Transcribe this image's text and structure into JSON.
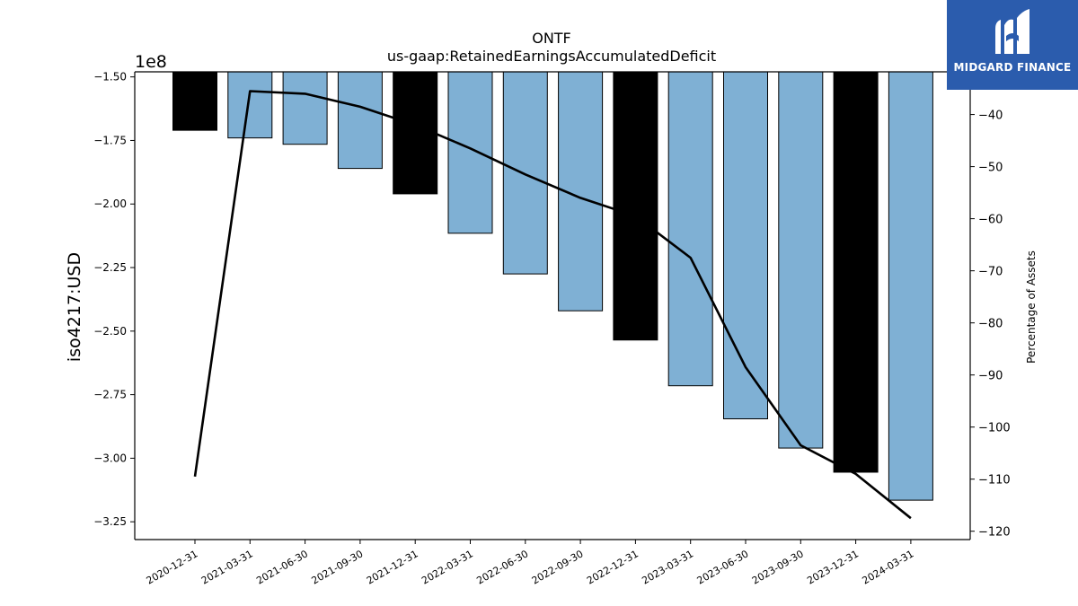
{
  "chart_data": {
    "type": "bar",
    "title": "ONTF",
    "subtitle": "us-gaap:RetainedEarningsAccumulatedDeficit",
    "ylabel": "iso4217:USD",
    "y2label": "Percentage of Assets",
    "y_offset_label": "1e8",
    "categories": [
      "2020-12-31",
      "2021-03-31",
      "2021-06-30",
      "2021-09-30",
      "2021-12-31",
      "2022-03-31",
      "2022-06-30",
      "2022-09-30",
      "2022-12-31",
      "2023-03-31",
      "2023-06-30",
      "2023-09-30",
      "2023-12-31",
      "2024-03-31"
    ],
    "values": [
      -171000000,
      -174000000,
      -176500000,
      -186000000,
      -196000000,
      -211500000,
      -227500000,
      -242000000,
      -253500000,
      -271500000,
      -284500000,
      -296000000,
      -305500000,
      -316500000
    ],
    "bar_colors": [
      "#000000",
      "#7fb0d4",
      "#7fb0d4",
      "#7fb0d4",
      "#000000",
      "#7fb0d4",
      "#7fb0d4",
      "#7fb0d4",
      "#000000",
      "#7fb0d4",
      "#7fb0d4",
      "#7fb0d4",
      "#000000",
      "#7fb0d4"
    ],
    "series": [
      {
        "type": "line",
        "axis": "right",
        "values": [
          -109.5,
          -35.5,
          -36.0,
          -38.5,
          -42.0,
          -46.5,
          -51.5,
          -56.0,
          -59.5,
          -67.5,
          -88.5,
          -103.5,
          -109.0,
          -117.5
        ]
      }
    ],
    "ylim": [
      -332000000,
      -148000000
    ],
    "yticks": [
      -150000000,
      -175000000,
      -200000000,
      -225000000,
      -250000000,
      -275000000,
      -300000000,
      -325000000
    ],
    "ytick_labels": [
      "−1.50",
      "−1.75",
      "−2.00",
      "−2.25",
      "−2.50",
      "−2.75",
      "−3.00",
      "−3.25"
    ],
    "y2lim": [
      -121.6,
      -31.8
    ],
    "y2ticks": [
      -40,
      -50,
      -60,
      -70,
      -80,
      -90,
      -100,
      -110,
      -120
    ],
    "y2tick_labels": [
      "−40",
      "−50",
      "−60",
      "−70",
      "−80",
      "−90",
      "−100",
      "−110",
      "−120"
    ],
    "grid": false,
    "colors": {
      "bar_primary": "#7fb0d4",
      "bar_highlight": "#000000",
      "line": "#000000"
    }
  },
  "branding": {
    "logo_text": "MIDGARD FINANCE",
    "logo_icon": "midgard-logo-icon",
    "logo_bg": "#2b5cad"
  }
}
